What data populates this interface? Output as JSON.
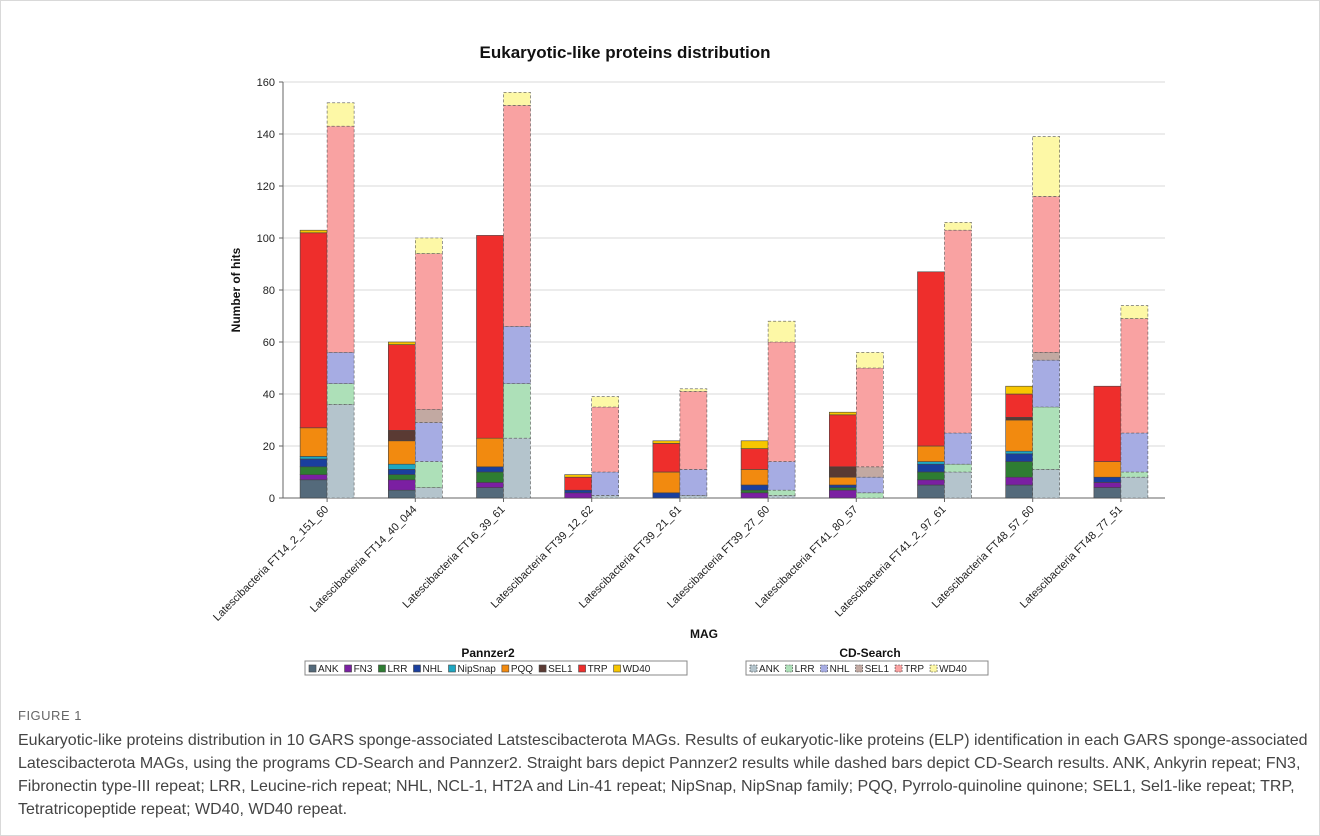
{
  "chart_data": {
    "type": "bar",
    "title": "Eukaryotic-like proteins distribution",
    "xlabel": "MAG",
    "ylabel": "Number of hits",
    "ylim": [
      0,
      160
    ],
    "yticks": [
      0,
      20,
      40,
      60,
      80,
      100,
      120,
      140,
      160
    ],
    "grid": true,
    "stacked": true,
    "categories": [
      "Latescibacteria FT14_2_151_60",
      "Latescibacteria FT14_40_044",
      "Latescibacteria FT16_39_61",
      "Latescibacteria FT39_12_62",
      "Latescibacteria FT39_21_61",
      "Latescibacteria FT39_27_60",
      "Latescibacteria FT41_80_57",
      "Latescibacteria FT41_2_97_61",
      "Latescibacteria FT48_57_60",
      "Latescibacteria FT48_77_51"
    ],
    "groups": [
      {
        "name": "Pannzer2",
        "border": "solid",
        "series": [
          {
            "name": "ANK",
            "color": "#546a7b",
            "values": [
              7,
              3,
              4,
              0,
              0,
              0,
              0,
              5,
              5,
              4
            ]
          },
          {
            "name": "FN3",
            "color": "#7b1fa2",
            "values": [
              2,
              4,
              2,
              2,
              0,
              2,
              3,
              2,
              3,
              2
            ]
          },
          {
            "name": "LRR",
            "color": "#2e7d32",
            "values": [
              3,
              2,
              4,
              0,
              0,
              1,
              1,
              3,
              6,
              0
            ]
          },
          {
            "name": "NHL",
            "color": "#1a3f9e",
            "values": [
              3,
              2,
              2,
              1,
              2,
              2,
              1,
              3,
              3,
              2
            ]
          },
          {
            "name": "NipSnap",
            "color": "#1ea7c2",
            "values": [
              1,
              2,
              0,
              0,
              0,
              0,
              0,
              1,
              1,
              0
            ]
          },
          {
            "name": "PQQ",
            "color": "#f28a0f",
            "values": [
              11,
              9,
              11,
              0,
              8,
              6,
              3,
              6,
              12,
              6
            ]
          },
          {
            "name": "SEL1",
            "color": "#5a3a33",
            "values": [
              0,
              4,
              0,
              0,
              0,
              0,
              4,
              0,
              1,
              0
            ]
          },
          {
            "name": "TRP",
            "color": "#ee2e2c",
            "values": [
              75,
              33,
              78,
              5,
              11,
              8,
              20,
              67,
              9,
              29
            ]
          },
          {
            "name": "WD40",
            "color": "#f7c600",
            "values": [
              1,
              1,
              0,
              1,
              1,
              3,
              1,
              0,
              3,
              0
            ]
          }
        ]
      },
      {
        "name": "CD-Search",
        "border": "dashed",
        "series": [
          {
            "name": "ANK",
            "color": "#b4c4cc",
            "values": [
              36,
              4,
              23,
              1,
              1,
              1,
              0,
              10,
              11,
              8
            ]
          },
          {
            "name": "LRR",
            "color": "#ade0b8",
            "values": [
              8,
              10,
              21,
              0,
              0,
              2,
              2,
              3,
              24,
              2
            ]
          },
          {
            "name": "NHL",
            "color": "#a6ace3",
            "values": [
              12,
              15,
              22,
              9,
              10,
              11,
              6,
              12,
              18,
              15
            ]
          },
          {
            "name": "SEL1",
            "color": "#c2a9a2",
            "values": [
              0,
              5,
              0,
              0,
              0,
              0,
              4,
              0,
              3,
              0
            ]
          },
          {
            "name": "TRP",
            "color": "#f9a2a2",
            "values": [
              87,
              60,
              85,
              25,
              30,
              46,
              38,
              78,
              60,
              44
            ]
          },
          {
            "name": "WD40",
            "color": "#fdf8a6",
            "values": [
              9,
              6,
              5,
              4,
              1,
              8,
              6,
              3,
              23,
              5
            ]
          }
        ]
      }
    ]
  },
  "caption": {
    "label": "FIGURE 1",
    "title": "Eukaryotic-like proteins distribution in 10 GARS sponge-associated Latstescibacterota MAGs.",
    "body": "Results of eukaryotic-like proteins (ELP) identification in each GARS sponge-associated Latescibacterota MAGs, using the programs CD-Search and Pannzer2. Straight bars depict Pannzer2 results while dashed bars depict CD-Search results. ANK, Ankyrin repeat; FN3, Fibronectin type-III repeat; LRR, Leucine-rich repeat; NHL, NCL-1, HT2A and Lin-41 repeat; NipSnap, NipSnap family; PQQ, Pyrrolo-quinoline quinone; SEL1, Sel1-like repeat; TRP, Tetratricopeptide repeat; WD40, WD40 repeat."
  }
}
